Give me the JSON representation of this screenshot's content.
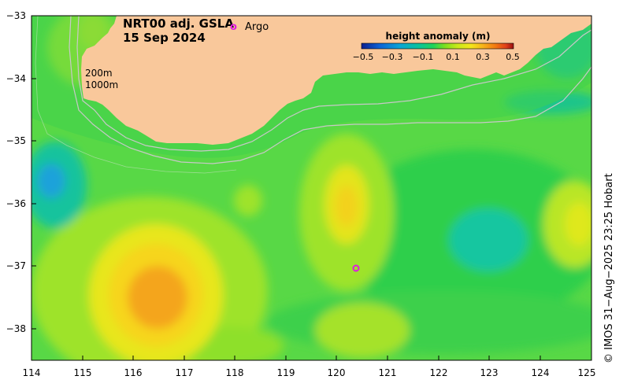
{
  "title": {
    "line1": "NRT00 adj. GSLA",
    "line2": "15 Sep 2024"
  },
  "argo_legend": {
    "symbol": "o",
    "label": "Argo"
  },
  "colorbar": {
    "title": "height anomaly (m)",
    "ticks": [
      "−0.5",
      "−0.3",
      "−0.1",
      "0.1",
      "0.3",
      "0.5"
    ],
    "range": [
      -0.5,
      0.5
    ],
    "colors": [
      "#0b1f8f",
      "#0d63d6",
      "#0aa4d6",
      "#0bc49a",
      "#1fd35a",
      "#7fe01f",
      "#c8e81a",
      "#f4e51a",
      "#f7b21a",
      "#f27a12",
      "#e0401a",
      "#9a1010"
    ]
  },
  "depth_labels": {
    "shallow": "200m",
    "deep": "1000m"
  },
  "axes": {
    "x_ticks": [
      "114",
      "115",
      "116",
      "117",
      "118",
      "119",
      "120",
      "121",
      "122",
      "123",
      "124",
      "125"
    ],
    "y_ticks": [
      "−33",
      "−34",
      "−35",
      "−36",
      "−37",
      "−38"
    ],
    "x_range": [
      114,
      125
    ],
    "y_range": [
      -38.5,
      -33
    ]
  },
  "credit": "© IMOS 31−Aug−2025 23:25 Hobart",
  "colors": {
    "land": "#f9c89b",
    "ocean_base": "#58d846",
    "argo": "#e01ce0",
    "contour": "#c8c8c8"
  },
  "anomaly_features": [
    {
      "type": "high",
      "lon": 116.5,
      "lat": -37.5,
      "value": 0.35
    },
    {
      "type": "high",
      "lon": 120.3,
      "lat": -36.1,
      "value": 0.18
    },
    {
      "type": "high",
      "lon": 114.5,
      "lat": -33.3,
      "value": 0.1
    },
    {
      "type": "high",
      "lon": 124.8,
      "lat": -36.3,
      "value": 0.12
    },
    {
      "type": "low",
      "lon": 114.4,
      "lat": -35.6,
      "value": -0.12
    },
    {
      "type": "low",
      "lon": 123.0,
      "lat": -36.6,
      "value": -0.1
    }
  ],
  "argo_floats": [
    {
      "lon": 120.4,
      "lat": -37.05
    }
  ]
}
